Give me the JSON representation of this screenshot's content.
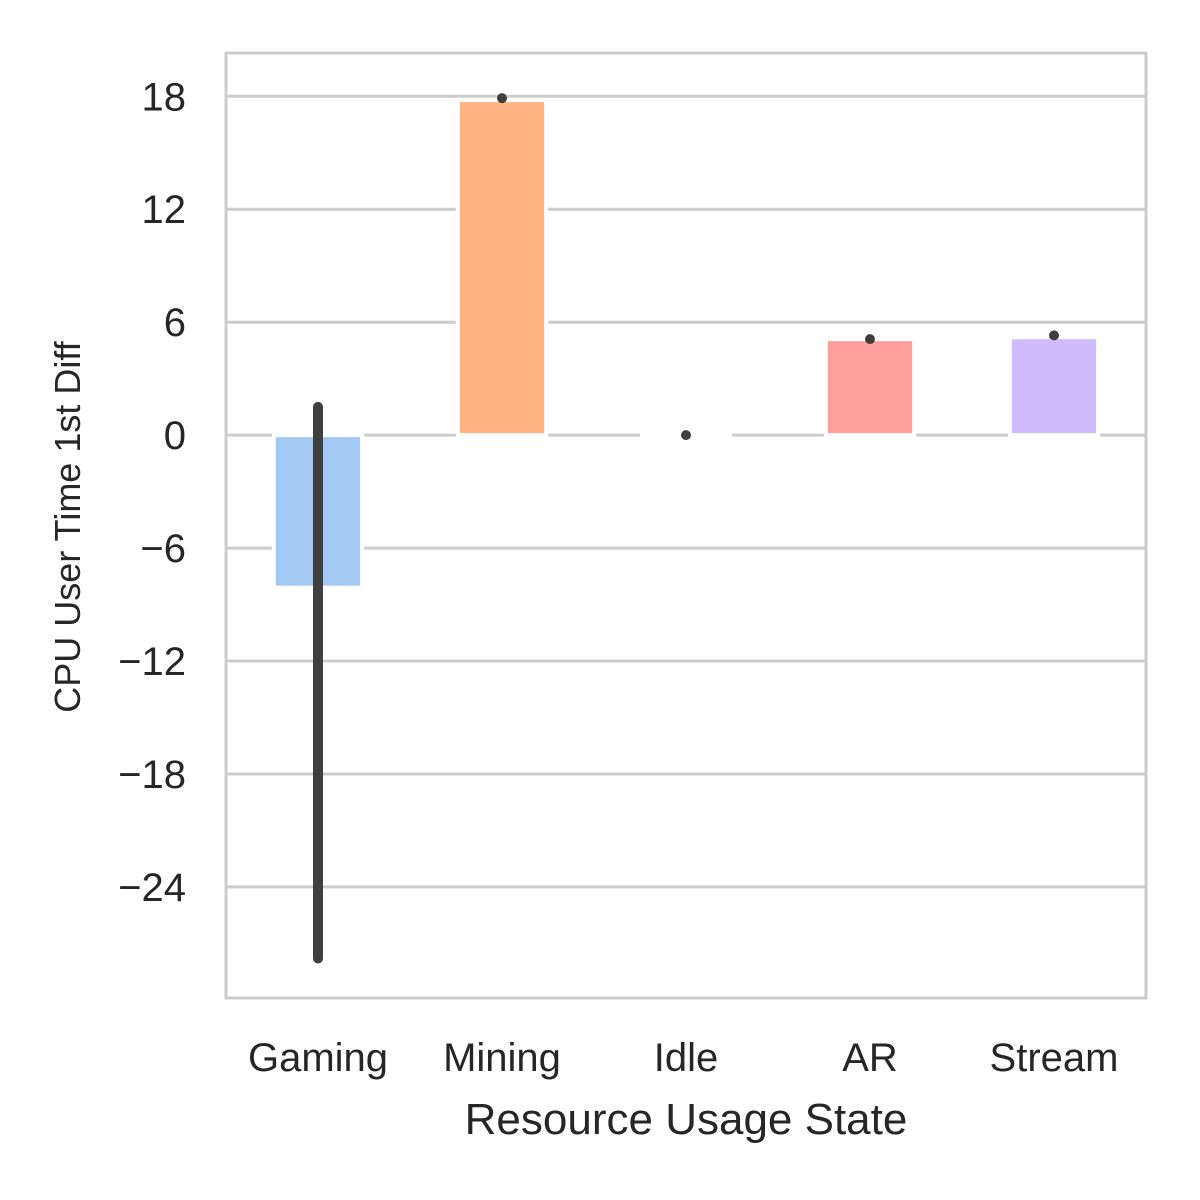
{
  "chart_data": {
    "type": "bar",
    "title": "",
    "xlabel": "Resource Usage State",
    "ylabel": "CPU User Time 1st Diff",
    "categories": [
      "Gaming",
      "Mining",
      "Idle",
      "AR",
      "Stream"
    ],
    "values": [
      -8.1,
      17.8,
      0.0,
      5.1,
      5.2
    ],
    "error_bars": [
      {
        "low": -27.8,
        "high": 1.5
      },
      {
        "low": 17.9,
        "high": 17.9
      },
      {
        "low": 0.0,
        "high": 0.0
      },
      {
        "low": 5.1,
        "high": 5.1
      },
      {
        "low": 5.3,
        "high": 5.3
      }
    ],
    "colors": [
      "#a1c9f4",
      "#ffb482",
      "#8de5a1",
      "#ff9f9b",
      "#d0bbff"
    ],
    "yticks": [
      18,
      12,
      6,
      0,
      -6,
      -12,
      -18,
      -24
    ],
    "ytick_labels": [
      "18",
      "12",
      "6",
      "0",
      "−6",
      "−12",
      "−18",
      "−24"
    ],
    "ylim": [
      -29.9,
      20.3
    ],
    "grid": "horizontal",
    "legend": "none"
  }
}
